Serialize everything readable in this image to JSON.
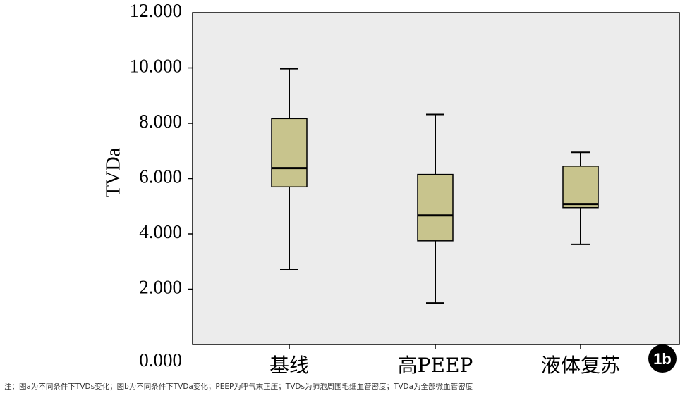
{
  "chart_data": {
    "type": "boxplot",
    "ylabel": "TVDa",
    "ylim": [
      0,
      12
    ],
    "yticks": [
      {
        "value": 0,
        "label": "0.000"
      },
      {
        "value": 2,
        "label": "2.000"
      },
      {
        "value": 4,
        "label": "4.000"
      },
      {
        "value": 6,
        "label": "6.000"
      },
      {
        "value": 8,
        "label": "8.000"
      },
      {
        "value": 10,
        "label": "10.000"
      },
      {
        "value": 12,
        "label": "12.000"
      }
    ],
    "categories": [
      "基线",
      "高PEEP",
      "液体复苏"
    ],
    "boxes": [
      {
        "category": "基线",
        "min": 2.7,
        "q1": 5.7,
        "median": 6.38,
        "q3": 8.17,
        "max": 9.97
      },
      {
        "category": "高PEEP",
        "min": 1.5,
        "q1": 3.75,
        "median": 4.67,
        "q3": 6.15,
        "max": 8.32
      },
      {
        "category": "液体复苏",
        "min": 3.62,
        "q1": 4.95,
        "median": 5.08,
        "q3": 6.45,
        "max": 6.95
      }
    ],
    "grid": false,
    "colors": {
      "plot_background": "#ececec",
      "box_fill": "#c8c48d",
      "box_stroke": "#000000"
    }
  },
  "badge": "1b",
  "caption": "注：图a为不同条件下TVDs变化；图b为不同条件下TVDa变化；PEEP为呼气末正压；TVDs为肺泡周围毛细血管密度；TVDa为全部微血管密度"
}
